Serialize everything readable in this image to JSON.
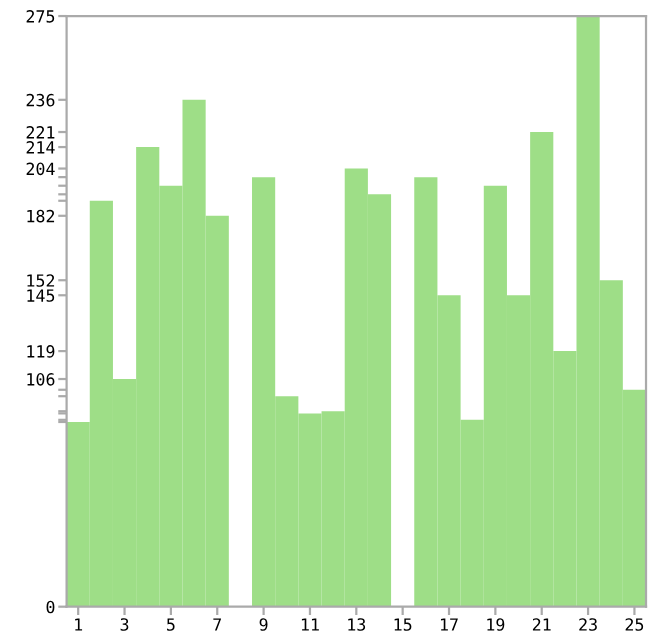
{
  "chart_data": {
    "type": "bar",
    "categories": [
      "1",
      null,
      "3",
      null,
      "5",
      null,
      "7",
      null,
      "9",
      null,
      "11",
      null,
      "13",
      null,
      "15",
      null,
      "17",
      null,
      "19",
      null,
      "21",
      null,
      "23",
      null,
      "25"
    ],
    "values": [
      86,
      189,
      106,
      214,
      196,
      236,
      182,
      0,
      200,
      98,
      90,
      91,
      204,
      192,
      0,
      200,
      145,
      87,
      196,
      145,
      221,
      119,
      275,
      152,
      101
    ],
    "color": "#9ede87",
    "ylim": [
      0,
      275
    ],
    "yticks": [
      0,
      {
        "value": 86,
        "label": null
      },
      {
        "value": 87,
        "label": null
      },
      {
        "value": 90,
        "label": null
      },
      {
        "value": 91,
        "label": null
      },
      {
        "value": 98,
        "label": null
      },
      {
        "value": 101,
        "label": null
      },
      106,
      119,
      145,
      152,
      182,
      {
        "value": 189,
        "label": null
      },
      {
        "value": 192,
        "label": null
      },
      {
        "value": 196,
        "label": null
      },
      {
        "value": 200,
        "label": null
      },
      204,
      214,
      221,
      236,
      275
    ],
    "grid": false
  }
}
